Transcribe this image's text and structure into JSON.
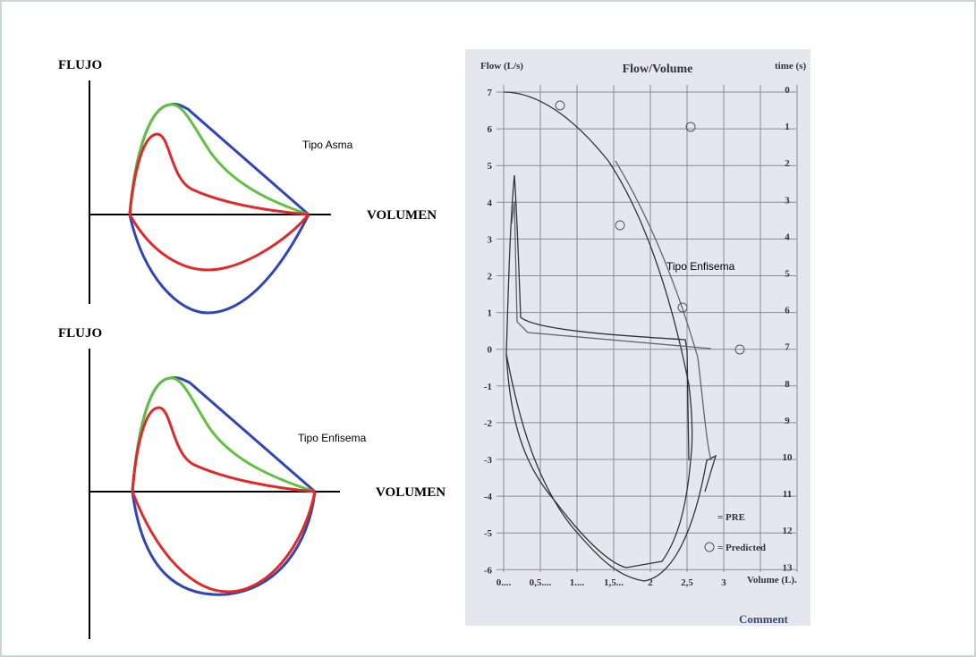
{
  "left": {
    "top": {
      "y_label": "FLUJO",
      "x_label": "VOLUMEN",
      "annotation": "Tipo Asma"
    },
    "bottom": {
      "y_label": "FLUJO",
      "x_label": "VOLUMEN",
      "annotation": "Tipo Enfisema"
    }
  },
  "right": {
    "left_axis_title": "Flow (L/s)",
    "title": "Flow/Volume",
    "right_axis_title": "time (s)",
    "left_ticks": [
      "7",
      "6",
      "5",
      "4",
      "3",
      "2",
      "1",
      "0",
      "-1",
      "-2",
      "-3",
      "-4",
      "-5",
      "-6"
    ],
    "right_ticks": [
      "0",
      "1",
      "2",
      "3",
      "4",
      "5",
      "6",
      "7",
      "8",
      "9",
      "10",
      "11",
      "12",
      "13"
    ],
    "bottom_ticks": [
      "0....",
      "0,5....",
      "1....",
      "1,5...",
      "2",
      "2,5",
      "3"
    ],
    "x_axis_title": "Volume (L).",
    "annotation": "Tipo Enfisema",
    "legend": [
      "= PRE",
      "= Predicted"
    ],
    "footer": "Comment"
  }
}
